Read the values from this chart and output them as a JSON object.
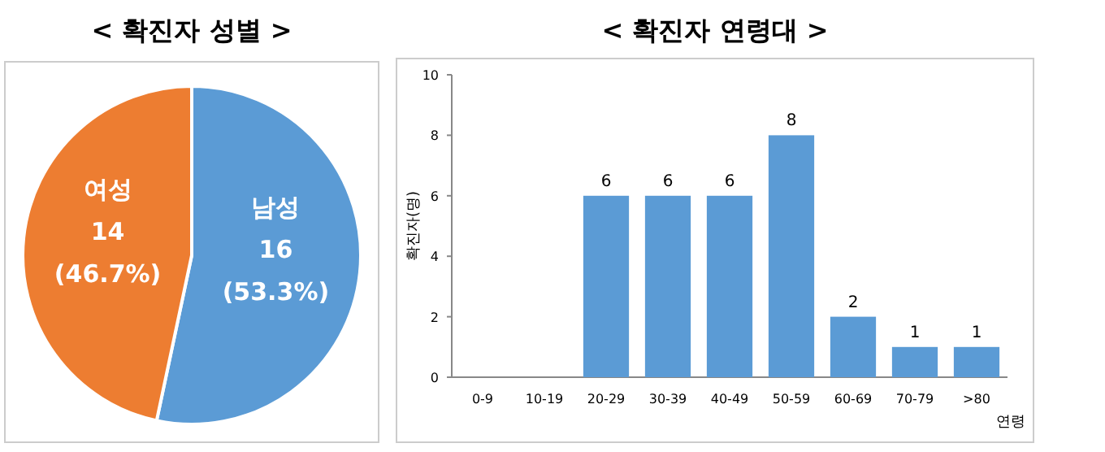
{
  "chart_data": [
    {
      "type": "pie",
      "title": "< 확진자 성별 >",
      "categories": [
        "남성",
        "여성"
      ],
      "values": [
        16,
        14
      ],
      "colors": [
        "#5b9bd5",
        "#ed7d31"
      ],
      "value_labels": [
        "16 (53.3%)",
        "14 (46.7%)"
      ]
    },
    {
      "type": "bar",
      "title": "< 확진자 연령대 >",
      "xlabel": "연령",
      "ylabel": "확진자(명)",
      "categories": [
        "0-9",
        "10-19",
        "20-29",
        "30-39",
        "40-49",
        "50-59",
        "60-69",
        "70-79",
        ">80"
      ],
      "values": [
        0,
        0,
        6,
        6,
        6,
        8,
        2,
        1,
        1
      ],
      "color": "#5b9bd5",
      "value_labels": [
        null,
        null,
        "6",
        "6",
        "6",
        "8",
        "2",
        "1",
        "1"
      ],
      "ylim": [
        0,
        10
      ],
      "yticks": [
        0,
        2,
        4,
        6,
        8,
        10
      ],
      "grid": false
    }
  ]
}
